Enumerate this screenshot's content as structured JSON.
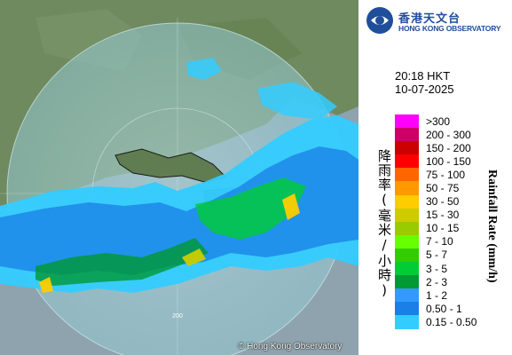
{
  "header": {
    "logo_zh": "香港天文台",
    "logo_en": "HONG KONG OBSERVATORY"
  },
  "timestamp": {
    "time": "20:18 HKT",
    "date": "10-07-2025"
  },
  "legend": {
    "title_zh": "降雨率(毫米/小時)",
    "title_en": "Rainfall Rate (mm/h)",
    "items": [
      {
        "label": ">300",
        "color": "#ff00ff"
      },
      {
        "label": "200 - 300",
        "color": "#cc0066"
      },
      {
        "label": "150 - 200",
        "color": "#cc0000"
      },
      {
        "label": "100 - 150",
        "color": "#ff0000"
      },
      {
        "label": "75 - 100",
        "color": "#ff6600"
      },
      {
        "label": "50 - 75",
        "color": "#ff9900"
      },
      {
        "label": "30 - 50",
        "color": "#ffcc00"
      },
      {
        "label": "15 - 30",
        "color": "#cccc00"
      },
      {
        "label": "10 - 15",
        "color": "#99cc00"
      },
      {
        "label": "7 - 10",
        "color": "#66ff00"
      },
      {
        "label": "5 - 7",
        "color": "#33cc00"
      },
      {
        "label": "3 - 5",
        "color": "#00cc33"
      },
      {
        "label": "2 - 3",
        "color": "#009933"
      },
      {
        "label": "1 - 2",
        "color": "#3399ff"
      },
      {
        "label": "0.50 - 1",
        "color": "#1a7fe6"
      },
      {
        "label": "0.15 - 0.50",
        "color": "#33ccff"
      }
    ]
  },
  "map": {
    "range_ring_label": "200",
    "copyright": "© Hong Kong Observatory",
    "colors": {
      "land": "#6f8a5f",
      "radar_disc": "#9fd4dc",
      "sea_outside": "#8ea3ad"
    }
  }
}
